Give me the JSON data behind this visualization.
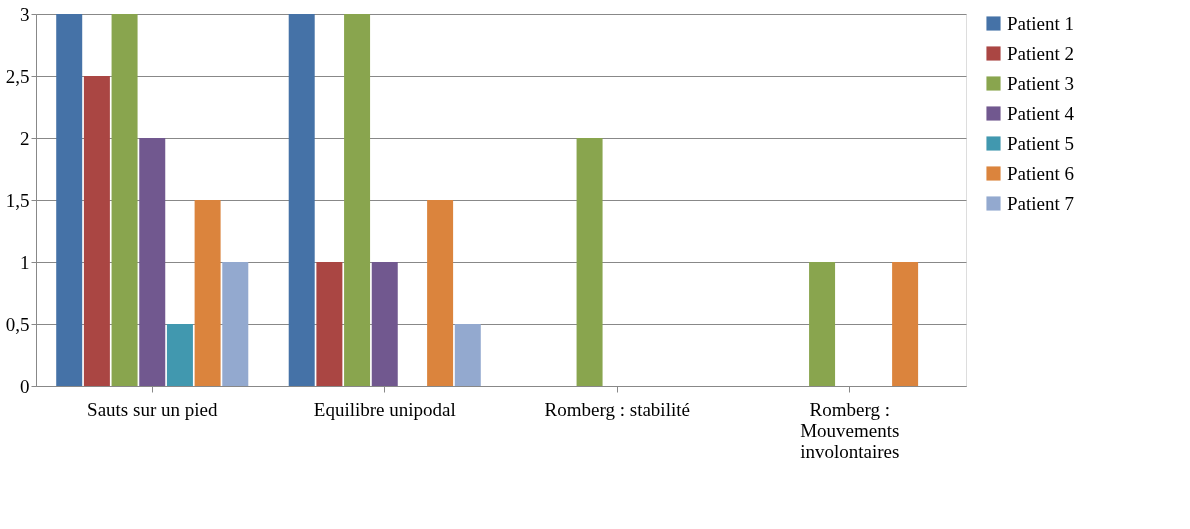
{
  "chart_data": {
    "type": "bar",
    "categories": [
      "Sauts sur un pied",
      "Equilibre unipodal",
      "Romberg : stabilité",
      "Romberg : Mouvements involontaires"
    ],
    "series": [
      {
        "name": "Patient 1",
        "color": "#4572a7",
        "values": [
          3,
          3,
          0,
          0
        ]
      },
      {
        "name": "Patient 2",
        "color": "#aa4643",
        "values": [
          2.5,
          1,
          0,
          0
        ]
      },
      {
        "name": "Patient 3",
        "color": "#89a54e",
        "values": [
          3,
          3,
          2,
          1
        ]
      },
      {
        "name": "Patient 4",
        "color": "#71588f",
        "values": [
          2,
          1,
          0,
          0
        ]
      },
      {
        "name": "Patient 5",
        "color": "#4198af",
        "values": [
          0.5,
          0,
          0,
          0
        ]
      },
      {
        "name": "Patient 6",
        "color": "#db843d",
        "values": [
          1.5,
          1.5,
          0,
          1
        ]
      },
      {
        "name": "Patient 7",
        "color": "#93a9cf",
        "values": [
          1,
          0.5,
          0,
          0
        ]
      }
    ],
    "ylim": [
      0,
      3
    ],
    "yticks": [
      0,
      {
        "value": 0.5,
        "label": "0,5"
      },
      1,
      {
        "value": 1.5,
        "label": "1,5"
      },
      2,
      {
        "value": 2.5,
        "label": "2,5"
      },
      3
    ],
    "grid": "y",
    "legend": "right"
  }
}
